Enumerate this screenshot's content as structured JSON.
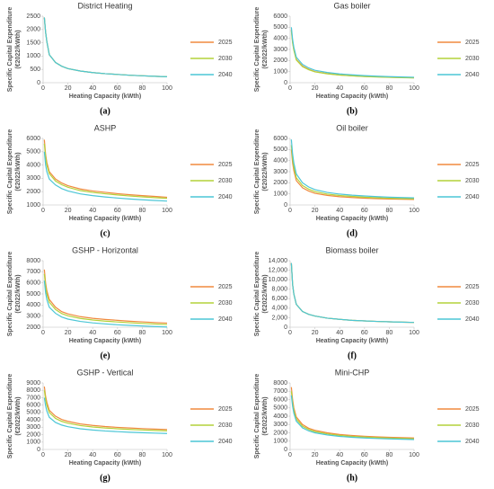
{
  "chart_data": [
    {
      "type": "line",
      "title": "District Heating",
      "label": "(a)",
      "x_label": "Heating Capacity (kWth)",
      "y_label": [
        "Specific Capital Expenditure",
        "(€2022/kWth)"
      ],
      "legend": "right",
      "x": [
        1,
        2,
        3,
        5,
        10,
        15,
        20,
        30,
        40,
        50,
        60,
        70,
        80,
        90,
        100
      ],
      "xlim": [
        0,
        100
      ],
      "xticks": [
        0,
        20,
        40,
        60,
        80,
        100
      ],
      "ylim": [
        0,
        2500
      ],
      "yticks": [
        0,
        500,
        1000,
        1500,
        2000,
        2500
      ],
      "series": [
        {
          "name": "2025",
          "color": "#f08a3e",
          "values": [
            2450,
            1900,
            1550,
            1050,
            760,
            620,
            530,
            440,
            380,
            340,
            310,
            280,
            260,
            240,
            225
          ]
        },
        {
          "name": "2030",
          "color": "#b4d23a",
          "values": [
            2450,
            1900,
            1550,
            1050,
            760,
            620,
            530,
            440,
            380,
            340,
            310,
            280,
            260,
            240,
            225
          ]
        },
        {
          "name": "2040",
          "color": "#4cc6d6",
          "values": [
            2450,
            1900,
            1550,
            1050,
            760,
            620,
            530,
            440,
            380,
            340,
            310,
            280,
            260,
            240,
            225
          ]
        }
      ]
    },
    {
      "type": "line",
      "title": "Gas boiler",
      "label": "(b)",
      "x_label": "Heating Capacity (kWth)",
      "y_label": [
        "Specific Capital Expenditure",
        "(€2022/kWth)"
      ],
      "legend": "right",
      "x": [
        1,
        2,
        3,
        5,
        10,
        15,
        20,
        30,
        40,
        50,
        60,
        70,
        80,
        90,
        100
      ],
      "xlim": [
        0,
        100
      ],
      "xticks": [
        0,
        20,
        40,
        60,
        80,
        100
      ],
      "ylim": [
        0,
        6000
      ],
      "yticks": [
        0,
        1000,
        2000,
        3000,
        4000,
        5000,
        6000
      ],
      "series": [
        {
          "name": "2025",
          "color": "#f08a3e",
          "values": [
            4800,
            3700,
            3000,
            2100,
            1500,
            1200,
            1000,
            820,
            700,
            630,
            570,
            530,
            490,
            460,
            440
          ]
        },
        {
          "name": "2030",
          "color": "#b4d23a",
          "values": [
            4700,
            3600,
            2950,
            2050,
            1450,
            1170,
            980,
            800,
            690,
            620,
            560,
            520,
            480,
            450,
            430
          ]
        },
        {
          "name": "2040",
          "color": "#4cc6d6",
          "values": [
            5000,
            3900,
            3200,
            2300,
            1650,
            1330,
            1120,
            920,
            790,
            710,
            640,
            590,
            550,
            520,
            490
          ]
        }
      ]
    },
    {
      "type": "line",
      "title": "ASHP",
      "label": "(c)",
      "x_label": "Heating Capacity (kWth)",
      "y_label": [
        "Specific Capital Expenditure",
        "(€2022/kWth)"
      ],
      "legend": "right",
      "x": [
        1,
        2,
        3,
        5,
        10,
        15,
        20,
        30,
        40,
        50,
        60,
        70,
        80,
        90,
        100
      ],
      "xlim": [
        0,
        100
      ],
      "xticks": [
        0,
        20,
        40,
        60,
        80,
        100
      ],
      "ylim": [
        1000,
        6000
      ],
      "yticks": [
        1000,
        2000,
        3000,
        4000,
        5000,
        6000
      ],
      "series": [
        {
          "name": "2025",
          "color": "#f08a3e",
          "values": [
            5900,
            4800,
            4200,
            3500,
            2950,
            2650,
            2450,
            2200,
            2050,
            1950,
            1850,
            1770,
            1700,
            1640,
            1580
          ]
        },
        {
          "name": "2030",
          "color": "#b4d23a",
          "values": [
            5600,
            4600,
            4000,
            3350,
            2800,
            2520,
            2330,
            2080,
            1940,
            1840,
            1750,
            1670,
            1610,
            1550,
            1500
          ]
        },
        {
          "name": "2040",
          "color": "#4cc6d6",
          "values": [
            5000,
            4000,
            3500,
            2950,
            2500,
            2230,
            2050,
            1830,
            1700,
            1600,
            1520,
            1450,
            1390,
            1340,
            1290
          ]
        }
      ]
    },
    {
      "type": "line",
      "title": "Oil boiler",
      "label": "(d)",
      "x_label": "Heating Capacity (kWth)",
      "y_label": [
        "Specific Capital Expenditure",
        "(€2022/kWth)"
      ],
      "legend": "right",
      "x": [
        1,
        2,
        3,
        5,
        10,
        15,
        20,
        30,
        40,
        50,
        60,
        70,
        80,
        90,
        100
      ],
      "xlim": [
        0,
        100
      ],
      "xticks": [
        0,
        20,
        40,
        60,
        80,
        100
      ],
      "ylim": [
        0,
        6000
      ],
      "yticks": [
        0,
        1000,
        2000,
        3000,
        4000,
        5000,
        6000
      ],
      "series": [
        {
          "name": "2025",
          "color": "#f08a3e",
          "values": [
            5000,
            3800,
            3100,
            2200,
            1550,
            1250,
            1050,
            860,
            740,
            670,
            610,
            570,
            540,
            510,
            490
          ]
        },
        {
          "name": "2030",
          "color": "#b4d23a",
          "values": [
            5400,
            4100,
            3400,
            2450,
            1750,
            1420,
            1200,
            980,
            850,
            770,
            700,
            650,
            610,
            580,
            560
          ]
        },
        {
          "name": "2040",
          "color": "#4cc6d6",
          "values": [
            5900,
            4600,
            3800,
            2800,
            2000,
            1620,
            1380,
            1130,
            980,
            880,
            810,
            750,
            700,
            670,
            640
          ]
        }
      ]
    },
    {
      "type": "line",
      "title": "GSHP - Horizontal",
      "label": "(e)",
      "x_label": "Heating Capacity (kWth)",
      "y_label": [
        "Specific Capital Expenditure",
        "(€2022/kWth)"
      ],
      "legend": "right",
      "x": [
        1,
        2,
        3,
        5,
        10,
        15,
        20,
        30,
        40,
        50,
        60,
        70,
        80,
        90,
        100
      ],
      "xlim": [
        0,
        100
      ],
      "xticks": [
        0,
        20,
        40,
        60,
        80,
        100
      ],
      "ylim": [
        2000,
        8000
      ],
      "yticks": [
        2000,
        3000,
        4000,
        5000,
        6000,
        7000,
        8000
      ],
      "series": [
        {
          "name": "2025",
          "color": "#f08a3e",
          "values": [
            7200,
            6000,
            5300,
            4500,
            3800,
            3400,
            3200,
            2950,
            2800,
            2700,
            2620,
            2540,
            2480,
            2420,
            2370
          ]
        },
        {
          "name": "2030",
          "color": "#b4d23a",
          "values": [
            6800,
            5700,
            5000,
            4250,
            3600,
            3230,
            3030,
            2790,
            2650,
            2550,
            2470,
            2400,
            2340,
            2290,
            2240
          ]
        },
        {
          "name": "2040",
          "color": "#4cc6d6",
          "values": [
            6200,
            5100,
            4500,
            3800,
            3250,
            2920,
            2730,
            2520,
            2390,
            2300,
            2220,
            2160,
            2110,
            2060,
            2020
          ]
        }
      ]
    },
    {
      "type": "line",
      "title": "Biomass boiler",
      "label": "(f)",
      "x_label": "Heating Capacity (kWth)",
      "y_label": [
        "Specific Capital Expenditure",
        "(€2022/kWth)"
      ],
      "legend": "right",
      "x": [
        1,
        2,
        3,
        5,
        10,
        15,
        20,
        30,
        40,
        50,
        60,
        70,
        80,
        90,
        100
      ],
      "xlim": [
        0,
        100
      ],
      "xticks": [
        0,
        20,
        40,
        60,
        80,
        100
      ],
      "ylim": [
        0,
        14000
      ],
      "yticks": [
        0,
        {
          "value": 2000,
          "label": "2,000"
        },
        {
          "value": 4000,
          "label": "4,000"
        },
        {
          "value": 6000,
          "label": "6,000"
        },
        {
          "value": 8000,
          "label": "8,000"
        },
        {
          "value": 10000,
          "label": "10,000"
        },
        {
          "value": 12000,
          "label": "12,000"
        },
        {
          "value": 14000,
          "label": "14,000"
        }
      ],
      "series": [
        {
          "name": "2025",
          "color": "#f08a3e",
          "values": [
            13500,
            9000,
            7000,
            4800,
            3300,
            2700,
            2350,
            1900,
            1650,
            1450,
            1320,
            1220,
            1130,
            1060,
            1000
          ]
        },
        {
          "name": "2030",
          "color": "#b4d23a",
          "values": [
            13500,
            9000,
            7000,
            4800,
            3300,
            2700,
            2350,
            1900,
            1650,
            1450,
            1320,
            1220,
            1130,
            1060,
            1000
          ]
        },
        {
          "name": "2040",
          "color": "#4cc6d6",
          "values": [
            13500,
            9000,
            7000,
            4800,
            3300,
            2700,
            2350,
            1900,
            1650,
            1450,
            1320,
            1220,
            1130,
            1060,
            1000
          ]
        }
      ]
    },
    {
      "type": "line",
      "title": "GSHP - Vertical",
      "label": "(g)",
      "x_label": "Heating Capacity (kWth)",
      "y_label": [
        "Specific Capital Expenditure",
        "(€2022/kWth)"
      ],
      "legend": "right",
      "x": [
        1,
        2,
        3,
        5,
        10,
        15,
        20,
        30,
        40,
        50,
        60,
        70,
        80,
        90,
        100
      ],
      "xlim": [
        0,
        100
      ],
      "xticks": [
        0,
        20,
        40,
        60,
        80,
        100
      ],
      "ylim": [
        0,
        9000
      ],
      "yticks": [
        0,
        1000,
        2000,
        3000,
        4000,
        5000,
        6000,
        7000,
        8000,
        9000
      ],
      "series": [
        {
          "name": "2025",
          "color": "#f08a3e",
          "values": [
            8500,
            7200,
            6400,
            5300,
            4500,
            4050,
            3800,
            3450,
            3250,
            3100,
            2990,
            2900,
            2820,
            2750,
            2700
          ]
        },
        {
          "name": "2030",
          "color": "#b4d23a",
          "values": [
            8000,
            6800,
            6000,
            5000,
            4200,
            3800,
            3550,
            3230,
            3040,
            2900,
            2800,
            2710,
            2640,
            2570,
            2520
          ]
        },
        {
          "name": "2040",
          "color": "#4cc6d6",
          "values": [
            7000,
            5900,
            5200,
            4350,
            3650,
            3300,
            3080,
            2800,
            2630,
            2500,
            2410,
            2330,
            2270,
            2210,
            2160
          ]
        }
      ]
    },
    {
      "type": "line",
      "title": "Mini-CHP",
      "label": "(h)",
      "x_label": "Heating Capacity (kWth)",
      "y_label": [
        "Specific Capital Expenditure",
        "(€2022/kWth)"
      ],
      "legend": "right",
      "x": [
        1,
        2,
        3,
        5,
        10,
        15,
        20,
        30,
        40,
        50,
        60,
        70,
        80,
        90,
        100
      ],
      "xlim": [
        0,
        100
      ],
      "xticks": [
        0,
        20,
        40,
        60,
        80,
        100
      ],
      "ylim": [
        0,
        8000
      ],
      "yticks": [
        0,
        1000,
        2000,
        3000,
        4000,
        5000,
        6000,
        7000,
        8000
      ],
      "series": [
        {
          "name": "2025",
          "color": "#f08a3e",
          "values": [
            7500,
            6000,
            5000,
            3900,
            3000,
            2550,
            2300,
            2000,
            1800,
            1680,
            1590,
            1520,
            1460,
            1420,
            1380
          ]
        },
        {
          "name": "2030",
          "color": "#b4d23a",
          "values": [
            7000,
            5600,
            4700,
            3650,
            2800,
            2400,
            2150,
            1870,
            1690,
            1570,
            1490,
            1420,
            1370,
            1330,
            1290
          ]
        },
        {
          "name": "2040",
          "color": "#4cc6d6",
          "values": [
            6500,
            5200,
            4350,
            3400,
            2600,
            2230,
            2000,
            1740,
            1570,
            1460,
            1380,
            1320,
            1270,
            1230,
            1190
          ]
        }
      ]
    }
  ]
}
